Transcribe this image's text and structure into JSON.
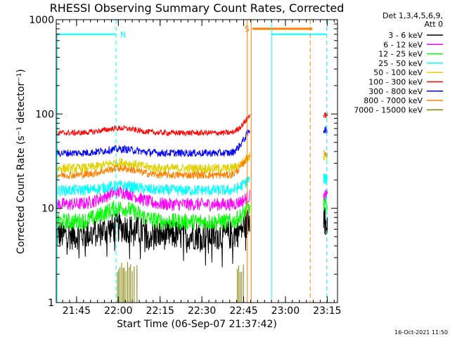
{
  "chart_data": {
    "type": "line",
    "title": "RHESSI Observing Summary Count Rates, Corrected",
    "xlabel": "Start Time (06-Sep-07 21:37:42)",
    "ylabel": "Corrected Count Rate (s⁻¹ detector⁻¹)",
    "yscale": "log",
    "ylim": [
      1,
      1000
    ],
    "xlim_minutes": [
      0,
      101
    ],
    "x_tick_labels": [
      "21:45",
      "22:00",
      "22:15",
      "22:30",
      "22:45",
      "23:00",
      "23:15"
    ],
    "x_tick_minutes": [
      7.3,
      22.3,
      37.3,
      52.3,
      67.3,
      82.3,
      97.3
    ],
    "y_tick_labels": [
      "1",
      "10",
      "100",
      "1000"
    ],
    "y_tick_values": [
      1,
      10,
      100,
      1000
    ],
    "legend_title": [
      "Det 1,3,4,5,6,9,",
      "Att 0"
    ],
    "series": [
      {
        "name": "3 - 6 keV",
        "color": "#000000",
        "base": 5.2,
        "noise": 0.16,
        "bump": 1.2,
        "end": 7.5
      },
      {
        "name": "6 - 12 keV",
        "color": "#ff00ff",
        "base": 11.0,
        "noise": 0.07,
        "bump": 1.35,
        "end": 13.5
      },
      {
        "name": "12 - 25 keV",
        "color": "#00ff00",
        "base": 7.2,
        "noise": 0.09,
        "bump": 1.4,
        "end": 10.5
      },
      {
        "name": "25 - 50 keV",
        "color": "#00ffff",
        "base": 15.5,
        "noise": 0.06,
        "bump": 1.12,
        "end": 20.5
      },
      {
        "name": "50 - 100 keV",
        "color": "#e0d000",
        "base": 26.5,
        "noise": 0.05,
        "bump": 1.15,
        "end": 36.0
      },
      {
        "name": "100 - 300 keV",
        "color": "#ff0000",
        "base": 63.0,
        "noise": 0.03,
        "bump": 1.12,
        "end": 97.0
      },
      {
        "name": "300 - 800 keV",
        "color": "#0000ff",
        "base": 38.5,
        "noise": 0.04,
        "bump": 1.1,
        "end": 68.0
      },
      {
        "name": "800 - 7000 keV",
        "color": "#ff8000",
        "base": 22.5,
        "noise": 0.04,
        "bump": 1.18,
        "end": 38.0
      },
      {
        "name": "7000 - 15000 keV",
        "color": "#808000",
        "base": 1.0,
        "noise": 0,
        "bump": 1.0,
        "end": 1.0
      }
    ],
    "data_gap_minutes": [
      69.5,
      95.5
    ],
    "flags": [
      {
        "label": "N",
        "color": "#00ffff",
        "level": 700,
        "start": 0,
        "end": 21.5
      },
      {
        "label": "S",
        "color": "#ff8000",
        "level": 800,
        "start": 70.5,
        "end": 92.0
      },
      {
        "label": "",
        "color": "#00ffff",
        "level": 700,
        "start": 77.3,
        "end": 97.0
      }
    ],
    "orange_vlines": [
      68.6,
      70.0,
      91.2
    ],
    "cyan_vlines": [
      21.5,
      77.3,
      97.1
    ]
  },
  "timestamp": "16-Oct-2021 11:50"
}
